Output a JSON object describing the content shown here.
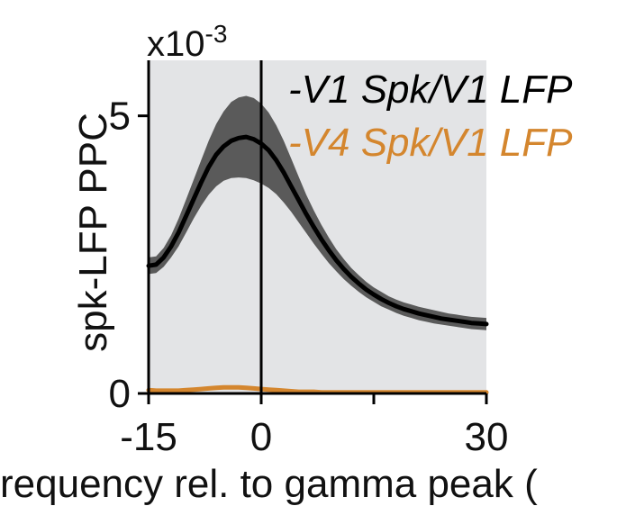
{
  "chart_data": {
    "type": "line",
    "ylabel": "spk-LFP PPC",
    "xlabel": "requency rel. to gamma peak (",
    "y_multiplier": "x10",
    "y_multiplier_exp": "-3",
    "xlim": [
      -15,
      30
    ],
    "ylim": [
      0,
      6
    ],
    "x_ticks": [
      -15,
      0,
      15,
      30
    ],
    "x_tick_labels": [
      "-15",
      "0",
      "",
      "30"
    ],
    "y_ticks": [
      0,
      5
    ],
    "y_tick_labels": [
      "0",
      "5"
    ],
    "reference_line_x": 0,
    "background_color": "#e3e4e6",
    "legend_position": "top-right",
    "x": [
      -15,
      -14,
      -13,
      -12,
      -11,
      -10,
      -9,
      -8,
      -7,
      -6,
      -5,
      -4,
      -3,
      -2,
      -1,
      0,
      1,
      2,
      3,
      4,
      5,
      6,
      7,
      8,
      9,
      10,
      11,
      12,
      13,
      14,
      15,
      16,
      17,
      18,
      19,
      20,
      21,
      22,
      23,
      24,
      25,
      26,
      27,
      28,
      29,
      30
    ],
    "series": [
      {
        "name": "-V1 Spk/V1 LFP",
        "color": "#000000",
        "band_color": "#5a5a5a",
        "values": [
          2.3,
          2.32,
          2.45,
          2.65,
          2.9,
          3.2,
          3.5,
          3.8,
          4.08,
          4.3,
          4.45,
          4.55,
          4.6,
          4.62,
          4.58,
          4.5,
          4.38,
          4.2,
          3.98,
          3.73,
          3.48,
          3.23,
          3.0,
          2.78,
          2.58,
          2.4,
          2.24,
          2.1,
          1.98,
          1.87,
          1.78,
          1.7,
          1.63,
          1.57,
          1.52,
          1.48,
          1.44,
          1.41,
          1.38,
          1.35,
          1.33,
          1.31,
          1.29,
          1.27,
          1.26,
          1.25
        ],
        "lower": [
          2.15,
          2.17,
          2.28,
          2.45,
          2.65,
          2.9,
          3.15,
          3.38,
          3.58,
          3.73,
          3.83,
          3.88,
          3.89,
          3.88,
          3.84,
          3.78,
          3.7,
          3.59,
          3.44,
          3.27,
          3.08,
          2.89,
          2.7,
          2.52,
          2.35,
          2.2,
          2.06,
          1.94,
          1.83,
          1.73,
          1.65,
          1.57,
          1.51,
          1.45,
          1.4,
          1.36,
          1.32,
          1.29,
          1.26,
          1.24,
          1.22,
          1.2,
          1.18,
          1.16,
          1.15,
          1.14
        ],
        "upper": [
          2.45,
          2.47,
          2.62,
          2.85,
          3.15,
          3.5,
          3.85,
          4.2,
          4.55,
          4.85,
          5.08,
          5.25,
          5.33,
          5.36,
          5.32,
          5.22,
          5.06,
          4.83,
          4.55,
          4.23,
          3.9,
          3.58,
          3.3,
          3.04,
          2.81,
          2.6,
          2.42,
          2.26,
          2.13,
          2.01,
          1.91,
          1.83,
          1.75,
          1.69,
          1.64,
          1.6,
          1.56,
          1.53,
          1.5,
          1.47,
          1.44,
          1.42,
          1.4,
          1.38,
          1.37,
          1.36
        ]
      },
      {
        "name": "-V4 Spk/V1 LFP",
        "color": "#d4862e",
        "values": [
          0.06,
          0.05,
          0.05,
          0.05,
          0.05,
          0.06,
          0.07,
          0.08,
          0.09,
          0.1,
          0.11,
          0.11,
          0.11,
          0.1,
          0.09,
          0.08,
          0.07,
          0.06,
          0.05,
          0.04,
          0.03,
          0.03,
          0.03,
          0.02,
          0.02,
          0.02,
          0.02,
          0.02,
          0.02,
          0.02,
          0.02,
          0.02,
          0.02,
          0.02,
          0.02,
          0.02,
          0.02,
          0.02,
          0.02,
          0.02,
          0.02,
          0.02,
          0.02,
          0.02,
          0.02,
          0.02
        ]
      }
    ]
  }
}
